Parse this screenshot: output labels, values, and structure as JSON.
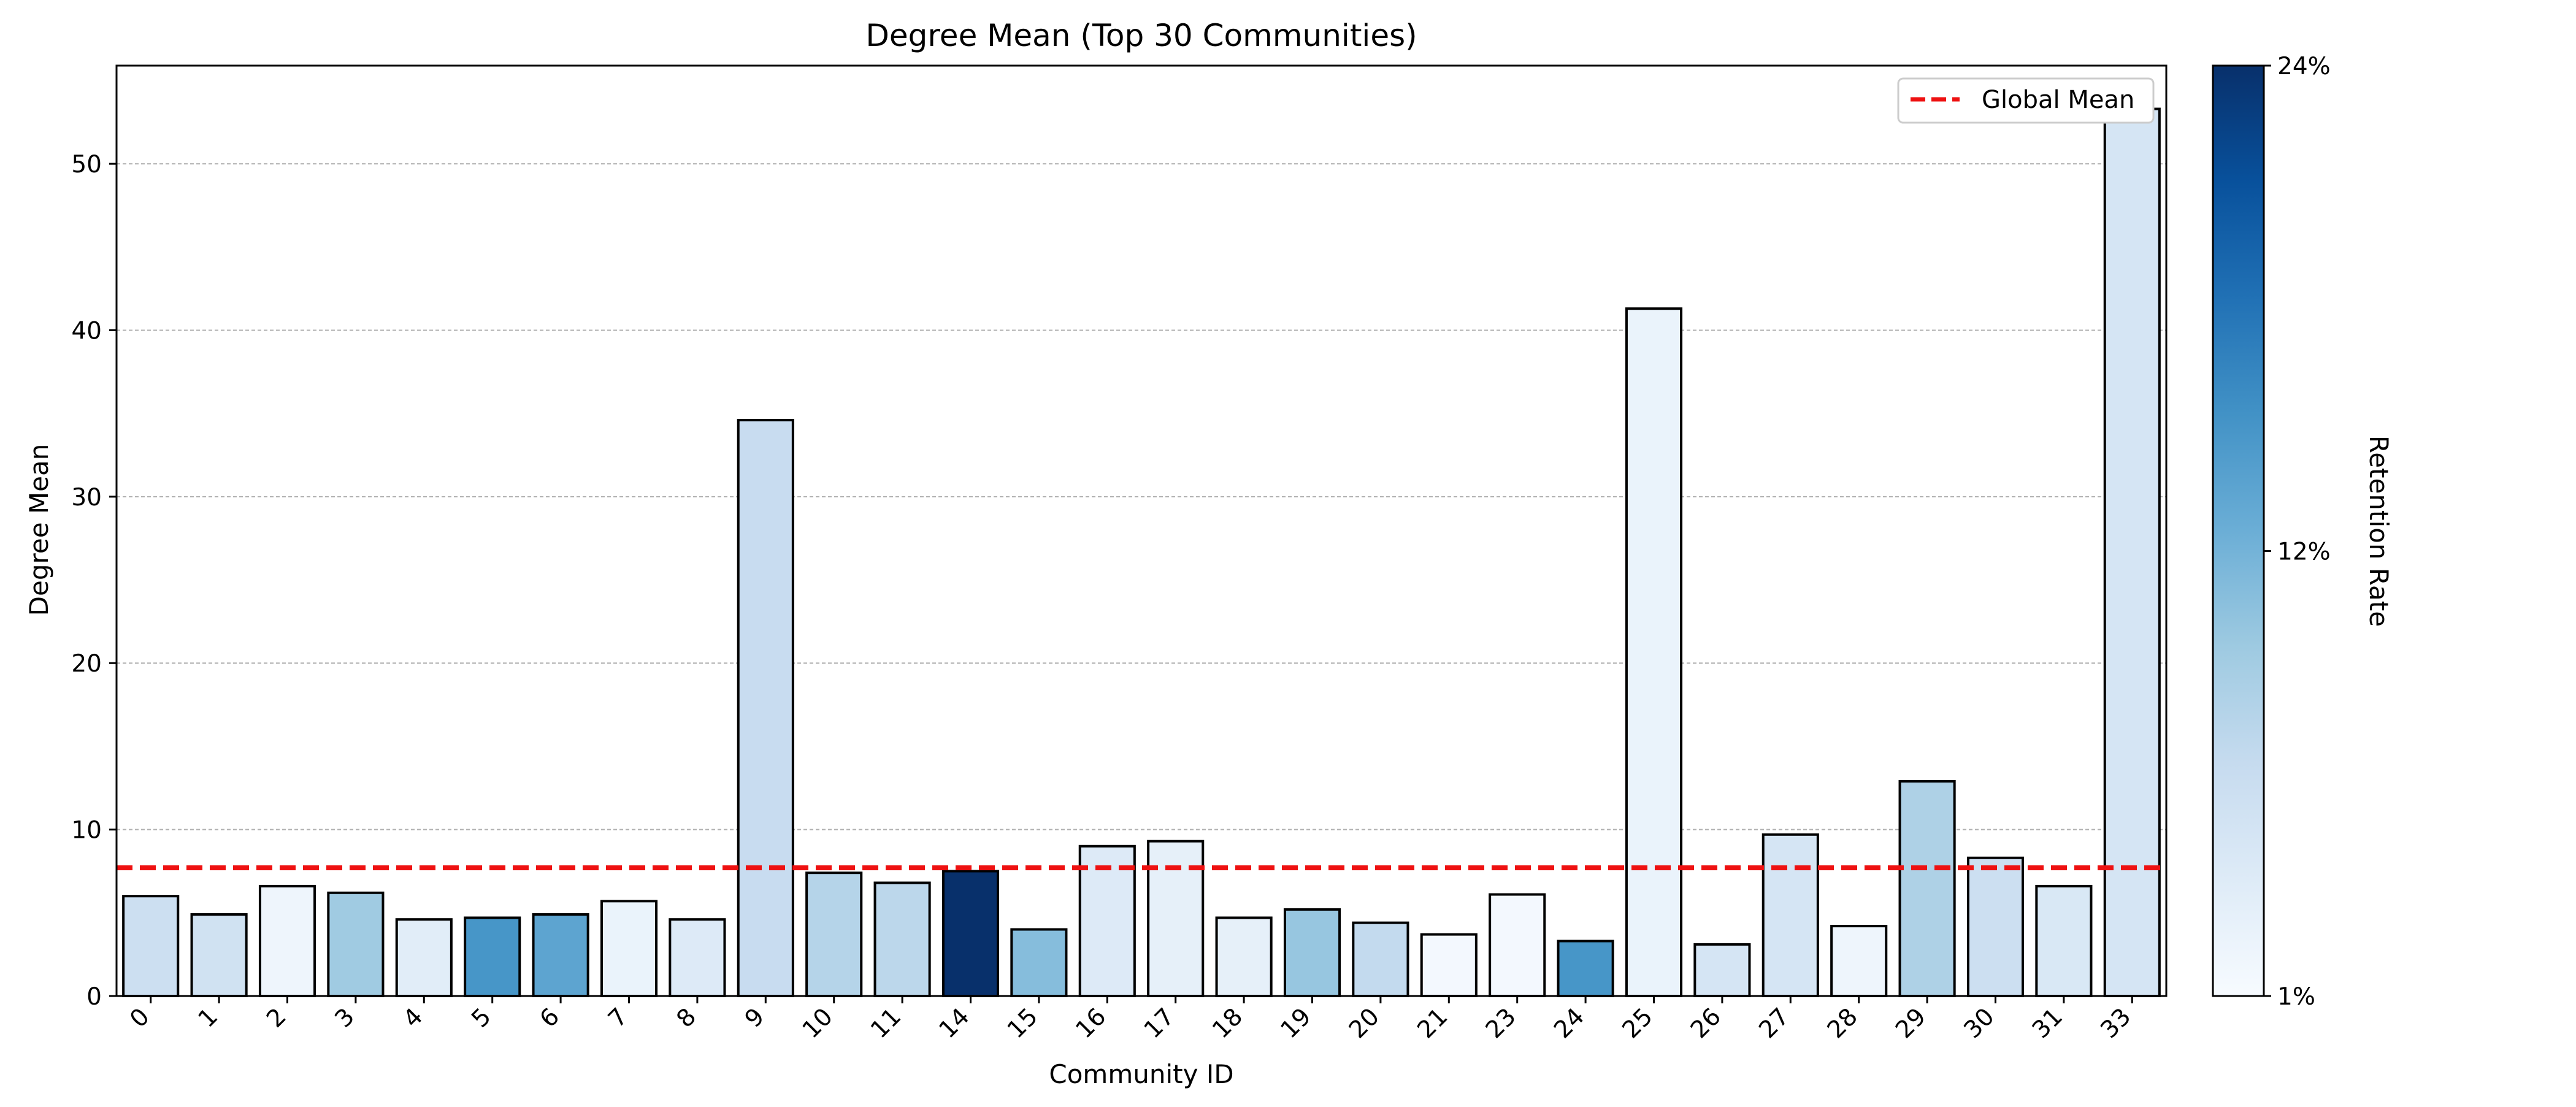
{
  "chart_data": {
    "type": "bar",
    "title": "Degree Mean (Top 30 Communities)",
    "xlabel": "Community ID",
    "ylabel": "Degree Mean",
    "categories": [
      "0",
      "1",
      "2",
      "3",
      "4",
      "5",
      "6",
      "7",
      "8",
      "9",
      "10",
      "11",
      "14",
      "15",
      "16",
      "17",
      "18",
      "19",
      "20",
      "21",
      "23",
      "24",
      "25",
      "26",
      "27",
      "28",
      "29",
      "30",
      "31",
      "33"
    ],
    "values": [
      6.0,
      4.9,
      6.6,
      6.2,
      4.6,
      4.7,
      4.9,
      5.7,
      4.6,
      34.6,
      7.4,
      6.8,
      7.5,
      4.0,
      9.0,
      9.3,
      4.7,
      5.2,
      4.4,
      3.7,
      6.1,
      3.3,
      41.3,
      3.1,
      9.7,
      4.2,
      12.9,
      8.3,
      6.6,
      53.3
    ],
    "retention_rate": [
      6,
      5.5,
      2,
      9.5,
      3.5,
      15,
      13.5,
      2.5,
      4,
      6.5,
      8,
      7.5,
      24,
      11,
      4,
      3,
      3,
      10,
      7,
      1.5,
      1.5,
      15,
      2.5,
      5,
      5,
      2,
      8.5,
      6,
      4.5,
      5
    ],
    "global_mean": 7.7,
    "ylim": [
      0,
      55.9
    ],
    "yticks": [
      0,
      10,
      20,
      30,
      40,
      50
    ],
    "grid": "y-dashed",
    "legend": {
      "label": "Global Mean",
      "placement": "top-right",
      "color": "#ee1111"
    },
    "colorbar": {
      "label": "Retention Rate",
      "min": 1,
      "max": 24,
      "ticks": [
        {
          "value": 1,
          "label": "1%"
        },
        {
          "value": 12,
          "label": "12%"
        },
        {
          "value": 24,
          "label": "24%"
        }
      ],
      "colormap": "Blues",
      "stops": [
        "#f7fbff",
        "#deebf7",
        "#c6dbef",
        "#9ecae1",
        "#6baed6",
        "#4292c6",
        "#2171b5",
        "#08519c",
        "#08306b"
      ]
    }
  }
}
